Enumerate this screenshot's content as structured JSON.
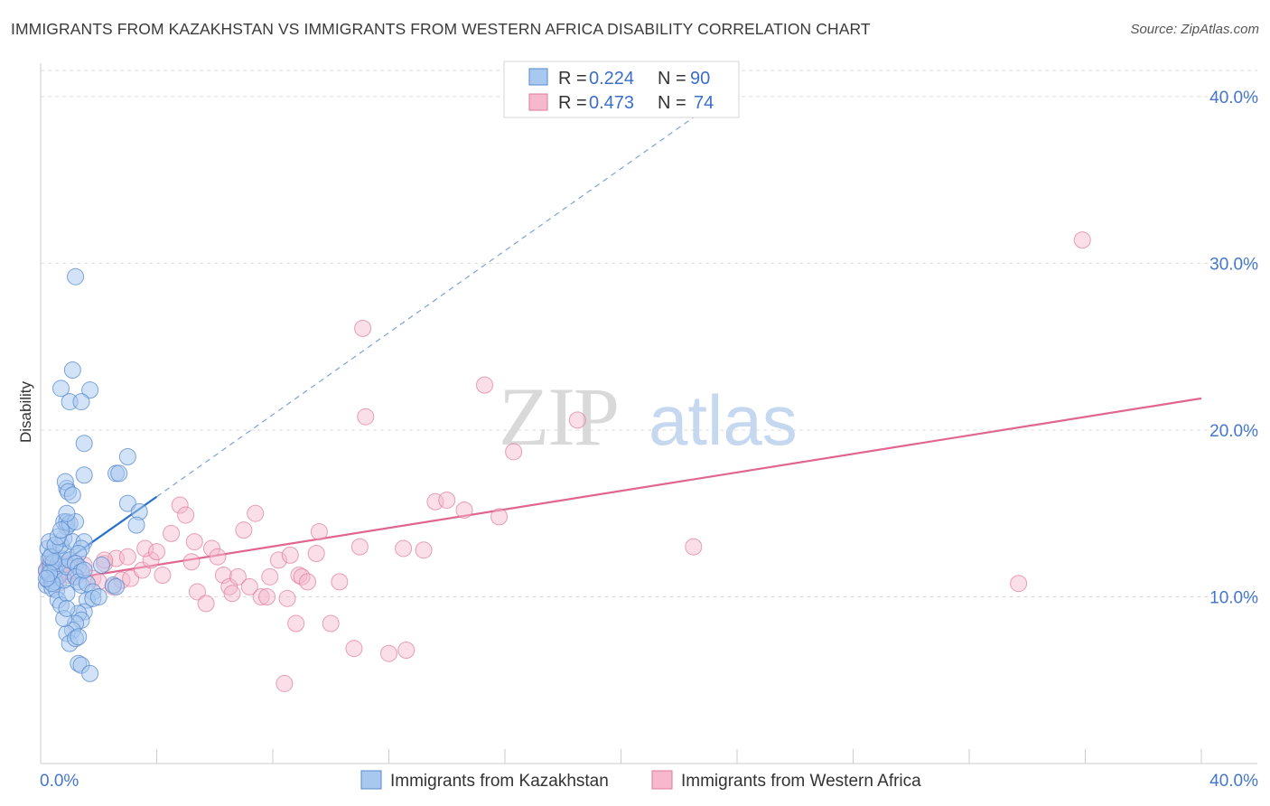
{
  "title": "IMMIGRANTS FROM KAZAKHSTAN VS IMMIGRANTS FROM WESTERN AFRICA DISABILITY CORRELATION CHART",
  "source": "Source: ZipAtlas.com",
  "watermark": {
    "zip": "ZIP",
    "atlas": "atlas"
  },
  "legend": {
    "entries": [
      {
        "r_label": "R = ",
        "r_value": "0.224",
        "n_label": "N = ",
        "n_value": "90"
      },
      {
        "r_label": "R = ",
        "r_value": "0.473",
        "n_label": "N = ",
        "n_value": "74"
      }
    ]
  },
  "colors": {
    "series1_fill": "#a8c8f0",
    "series1_stroke": "#5588cc",
    "series1_line": "#2a6fc9",
    "series2_fill": "#f5b8cc",
    "series2_stroke": "#e07a9a",
    "series2_line": "#e06690",
    "tick_text": "#4477cc",
    "grid": "#dddddd"
  },
  "chart_data": {
    "type": "scatter",
    "title": "IMMIGRANTS FROM KAZAKHSTAN VS IMMIGRANTS FROM WESTERN AFRICA DISABILITY CORRELATION CHART",
    "xlabel": "",
    "ylabel": "Disability",
    "xlim": [
      0,
      40
    ],
    "ylim": [
      0,
      42
    ],
    "x_tick_labels": [
      "0.0%",
      "40.0%"
    ],
    "y_ticks": [
      10,
      20,
      30,
      40
    ],
    "y_tick_labels": [
      "10.0%",
      "20.0%",
      "30.0%",
      "40.0%"
    ],
    "grid": true,
    "legend_position": "top-center",
    "series": [
      {
        "name": "Immigrants from Kazakhstan",
        "r": 0.224,
        "n": 90,
        "trend": {
          "x": [
            0,
            4.0
          ],
          "y": [
            11.1,
            16.0
          ],
          "extended_to": [
            24.0,
            40.6
          ]
        },
        "points": [
          [
            0.2,
            10.7
          ],
          [
            0.25,
            11.0
          ],
          [
            0.3,
            11.3
          ],
          [
            0.2,
            11.6
          ],
          [
            0.35,
            11.9
          ],
          [
            0.3,
            12.3
          ],
          [
            0.4,
            12.6
          ],
          [
            0.25,
            12.9
          ],
          [
            0.3,
            13.3
          ],
          [
            0.4,
            10.5
          ],
          [
            0.5,
            10.9
          ],
          [
            0.6,
            11.2
          ],
          [
            0.5,
            11.6
          ],
          [
            0.6,
            12.0
          ],
          [
            0.7,
            12.3
          ],
          [
            0.8,
            12.7
          ],
          [
            0.7,
            13.1
          ],
          [
            0.8,
            13.5
          ],
          [
            0.55,
            10.4
          ],
          [
            0.6,
            9.8
          ],
          [
            0.7,
            9.5
          ],
          [
            0.9,
            10.2
          ],
          [
            0.8,
            11.0
          ],
          [
            0.9,
            11.8
          ],
          [
            0.45,
            12.1
          ],
          [
            0.35,
            12.4
          ],
          [
            1.0,
            12.2
          ],
          [
            1.1,
            13.3
          ],
          [
            0.9,
            14.2
          ],
          [
            0.8,
            14.5
          ],
          [
            0.9,
            14.5
          ],
          [
            1.0,
            14.4
          ],
          [
            1.2,
            14.5
          ],
          [
            0.9,
            15.0
          ],
          [
            0.9,
            16.5
          ],
          [
            0.85,
            16.9
          ],
          [
            0.95,
            16.3
          ],
          [
            1.1,
            16.1
          ],
          [
            1.5,
            13.3
          ],
          [
            1.4,
            12.9
          ],
          [
            1.3,
            12.6
          ],
          [
            1.2,
            12.0
          ],
          [
            1.3,
            11.8
          ],
          [
            1.4,
            11.5
          ],
          [
            1.2,
            11.2
          ],
          [
            1.3,
            10.9
          ],
          [
            1.4,
            10.7
          ],
          [
            1.6,
            10.8
          ],
          [
            1.5,
            11.6
          ],
          [
            1.8,
            10.3
          ],
          [
            1.6,
            9.8
          ],
          [
            1.5,
            9.1
          ],
          [
            1.3,
            9.0
          ],
          [
            1.4,
            8.6
          ],
          [
            1.2,
            8.4
          ],
          [
            1.1,
            8.0
          ],
          [
            0.9,
            7.8
          ],
          [
            0.8,
            8.7
          ],
          [
            0.9,
            9.3
          ],
          [
            1.0,
            7.2
          ],
          [
            1.2,
            7.5
          ],
          [
            1.3,
            7.6
          ],
          [
            1.3,
            6.0
          ],
          [
            1.4,
            5.9
          ],
          [
            1.7,
            5.4
          ],
          [
            1.8,
            9.9
          ],
          [
            2.0,
            10.0
          ],
          [
            2.1,
            11.9
          ],
          [
            2.5,
            10.7
          ],
          [
            2.6,
            10.6
          ],
          [
            1.5,
            19.2
          ],
          [
            1.5,
            17.3
          ],
          [
            1.1,
            23.6
          ],
          [
            0.7,
            22.5
          ],
          [
            1.7,
            22.4
          ],
          [
            1.0,
            21.7
          ],
          [
            1.4,
            21.7
          ],
          [
            2.6,
            17.4
          ],
          [
            2.7,
            17.4
          ],
          [
            3.0,
            18.4
          ],
          [
            3.0,
            15.6
          ],
          [
            3.4,
            15.1
          ],
          [
            3.3,
            14.3
          ],
          [
            1.2,
            29.2
          ],
          [
            0.5,
            13.1
          ],
          [
            0.6,
            13.6
          ],
          [
            0.7,
            14.0
          ],
          [
            0.4,
            10.8
          ],
          [
            0.3,
            11.4
          ],
          [
            0.2,
            11.1
          ]
        ]
      },
      {
        "name": "Immigrants from Western Africa",
        "r": 0.473,
        "n": 74,
        "trend": {
          "x": [
            0,
            40.0
          ],
          "y": [
            10.8,
            21.9
          ]
        },
        "points": [
          [
            0.2,
            11.5
          ],
          [
            0.3,
            11.9
          ],
          [
            0.4,
            12.2
          ],
          [
            0.5,
            11.1
          ],
          [
            0.6,
            10.8
          ],
          [
            0.7,
            11.6
          ],
          [
            0.8,
            12.0
          ],
          [
            1.0,
            11.3
          ],
          [
            1.2,
            11.2
          ],
          [
            1.5,
            11.9
          ],
          [
            1.8,
            11.1
          ],
          [
            2.0,
            10.9
          ],
          [
            2.2,
            12.0
          ],
          [
            2.5,
            10.6
          ],
          [
            2.6,
            12.3
          ],
          [
            2.8,
            11.0
          ],
          [
            3.0,
            12.4
          ],
          [
            3.1,
            11.1
          ],
          [
            3.5,
            11.6
          ],
          [
            3.8,
            12.2
          ],
          [
            3.6,
            12.9
          ],
          [
            4.0,
            12.7
          ],
          [
            4.2,
            11.3
          ],
          [
            4.5,
            13.8
          ],
          [
            4.8,
            15.5
          ],
          [
            5.0,
            14.9
          ],
          [
            5.2,
            12.1
          ],
          [
            5.3,
            13.3
          ],
          [
            5.4,
            10.3
          ],
          [
            5.7,
            9.6
          ],
          [
            5.9,
            12.9
          ],
          [
            6.1,
            12.4
          ],
          [
            6.3,
            11.3
          ],
          [
            6.5,
            10.6
          ],
          [
            6.6,
            10.2
          ],
          [
            6.8,
            11.2
          ],
          [
            7.0,
            14.0
          ],
          [
            7.2,
            10.6
          ],
          [
            7.4,
            15.0
          ],
          [
            7.6,
            10.0
          ],
          [
            7.8,
            10.0
          ],
          [
            7.9,
            11.2
          ],
          [
            8.2,
            12.2
          ],
          [
            8.6,
            12.5
          ],
          [
            8.8,
            8.4
          ],
          [
            8.9,
            11.3
          ],
          [
            8.5,
            9.9
          ],
          [
            9.0,
            11.2
          ],
          [
            9.2,
            10.9
          ],
          [
            9.5,
            12.6
          ],
          [
            9.6,
            13.9
          ],
          [
            10.0,
            8.4
          ],
          [
            10.3,
            10.9
          ],
          [
            10.8,
            6.9
          ],
          [
            11.0,
            13.0
          ],
          [
            11.1,
            26.1
          ],
          [
            11.2,
            20.8
          ],
          [
            12.0,
            6.6
          ],
          [
            12.5,
            12.9
          ],
          [
            12.6,
            6.8
          ],
          [
            13.2,
            12.8
          ],
          [
            13.6,
            15.7
          ],
          [
            14.0,
            15.8
          ],
          [
            14.6,
            15.2
          ],
          [
            15.3,
            22.7
          ],
          [
            15.8,
            14.8
          ],
          [
            16.3,
            18.7
          ],
          [
            18.5,
            20.6
          ],
          [
            22.5,
            13.0
          ],
          [
            8.4,
            4.8
          ],
          [
            2.2,
            12.2
          ],
          [
            1.2,
            12.0
          ],
          [
            33.7,
            10.8
          ],
          [
            35.9,
            31.4
          ]
        ]
      }
    ]
  },
  "bottom_legend": {
    "series1": "Immigrants from Kazakhstan",
    "series2": "Immigrants from Western Africa"
  }
}
